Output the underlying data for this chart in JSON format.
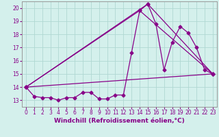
{
  "xlabel": "Windchill (Refroidissement éolien,°C)",
  "background_color": "#d4f0ec",
  "grid_color": "#b0d8d2",
  "line_color": "#880088",
  "xlim": [
    -0.5,
    23.5
  ],
  "ylim": [
    12.5,
    20.5
  ],
  "xticks": [
    0,
    1,
    2,
    3,
    4,
    5,
    6,
    7,
    8,
    9,
    10,
    11,
    12,
    13,
    14,
    15,
    16,
    17,
    18,
    19,
    20,
    21,
    22,
    23
  ],
  "yticks": [
    13,
    14,
    15,
    16,
    17,
    18,
    19,
    20
  ],
  "series1_x": [
    0,
    1,
    2,
    3,
    4,
    5,
    6,
    7,
    8,
    9,
    10,
    11,
    12,
    13,
    14,
    15,
    16,
    17,
    18,
    19,
    20,
    21,
    22,
    23
  ],
  "series1_y": [
    14.0,
    13.3,
    13.2,
    13.2,
    13.0,
    13.2,
    13.2,
    13.6,
    13.6,
    13.1,
    13.1,
    13.4,
    13.4,
    16.6,
    19.8,
    20.3,
    18.8,
    15.3,
    17.4,
    18.6,
    18.1,
    17.0,
    15.3,
    15.0
  ],
  "regline1_x": [
    0,
    23
  ],
  "regline1_y": [
    14.0,
    15.0
  ],
  "regline2_x": [
    0,
    14,
    23
  ],
  "regline2_y": [
    14.0,
    19.8,
    15.0
  ],
  "regline3_x": [
    0,
    15,
    23
  ],
  "regline3_y": [
    14.0,
    20.3,
    15.0
  ],
  "marker": "D",
  "markersize": 2.5,
  "linewidth": 0.9,
  "tick_fontsize": 5.5,
  "xlabel_fontsize": 6.5
}
